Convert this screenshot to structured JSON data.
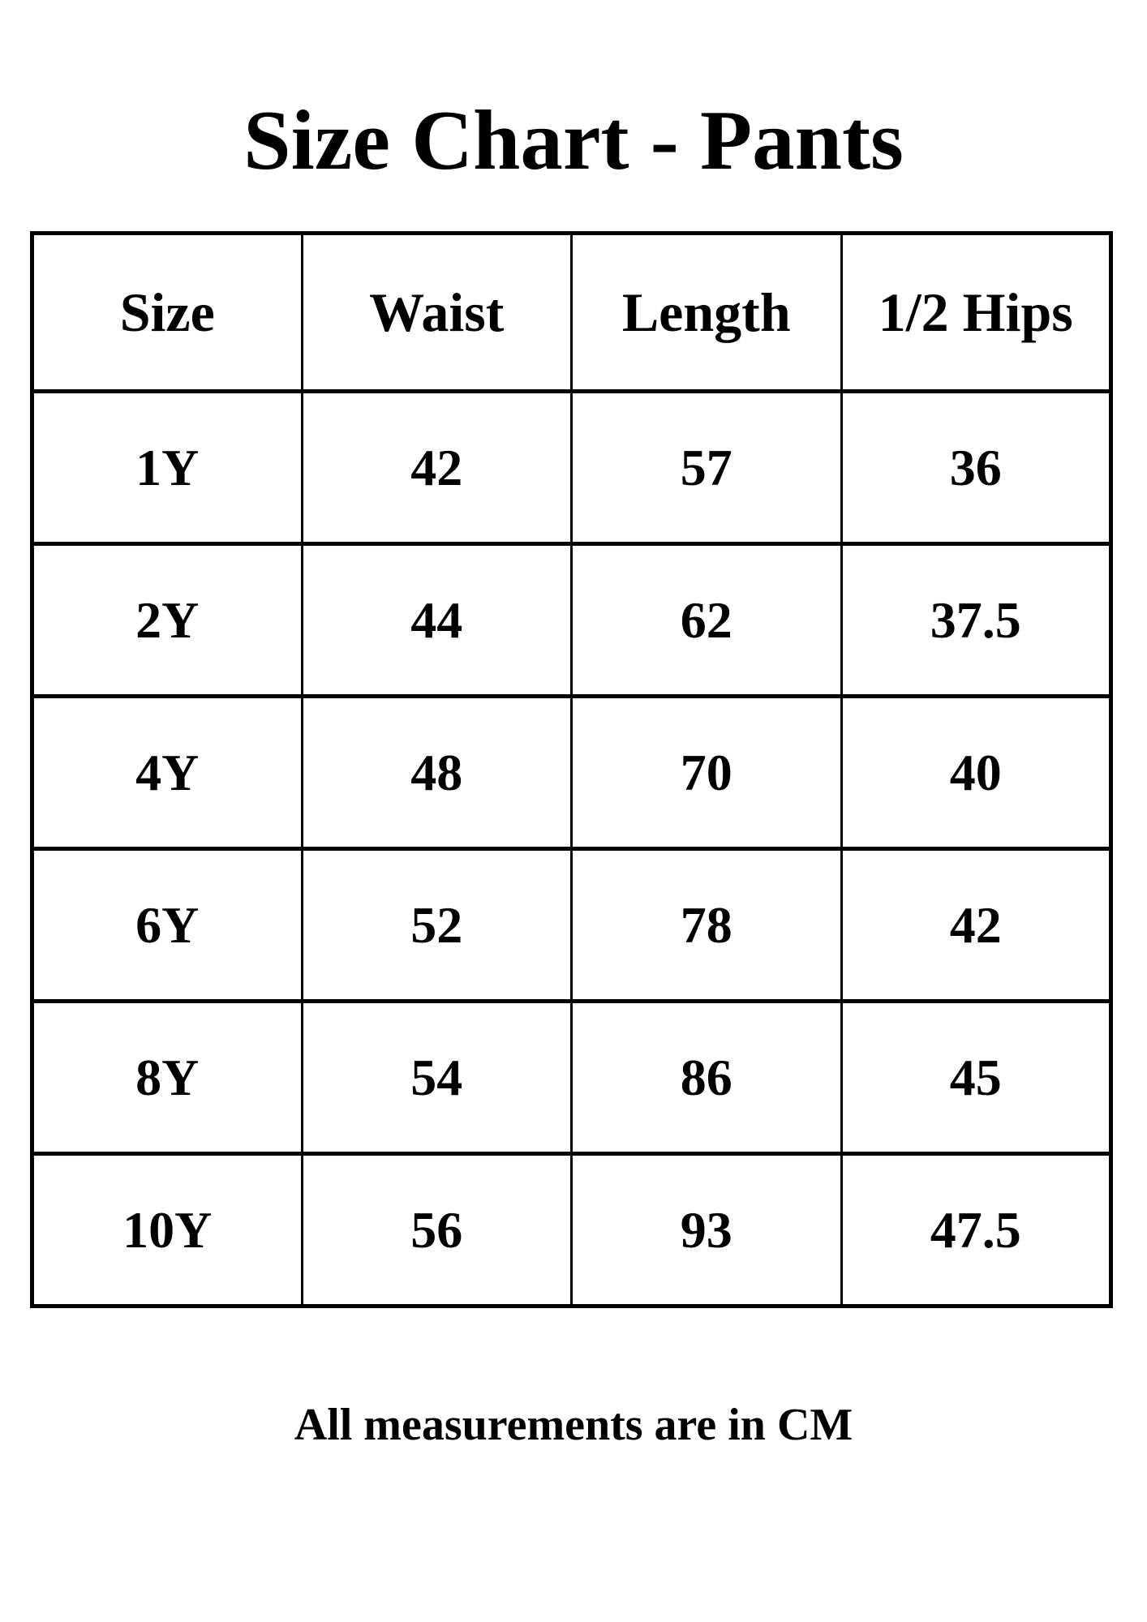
{
  "page": {
    "title_label": "Size Chart - Pants",
    "footer_note": "All measurements are in CM"
  },
  "table": {
    "headers": [
      "Size",
      "Waist",
      "Length",
      "1/2 Hips"
    ],
    "rows": [
      {
        "size": "1Y",
        "waist": "42",
        "length": "57",
        "half_hips": "36"
      },
      {
        "size": "2Y",
        "waist": "44",
        "length": "62",
        "half_hips": "37.5"
      },
      {
        "size": "4Y",
        "waist": "48",
        "length": "70",
        "half_hips": "40"
      },
      {
        "size": "6Y",
        "waist": "52",
        "length": "78",
        "half_hips": "42"
      },
      {
        "size": "8Y",
        "waist": "54",
        "length": "86",
        "half_hips": "45"
      },
      {
        "size": "10Y",
        "waist": "56",
        "length": "93",
        "half_hips": "47.5"
      }
    ],
    "unit": "CM"
  },
  "colors": {
    "text": "#000000",
    "background": "#ffffff",
    "border": "#000000"
  }
}
